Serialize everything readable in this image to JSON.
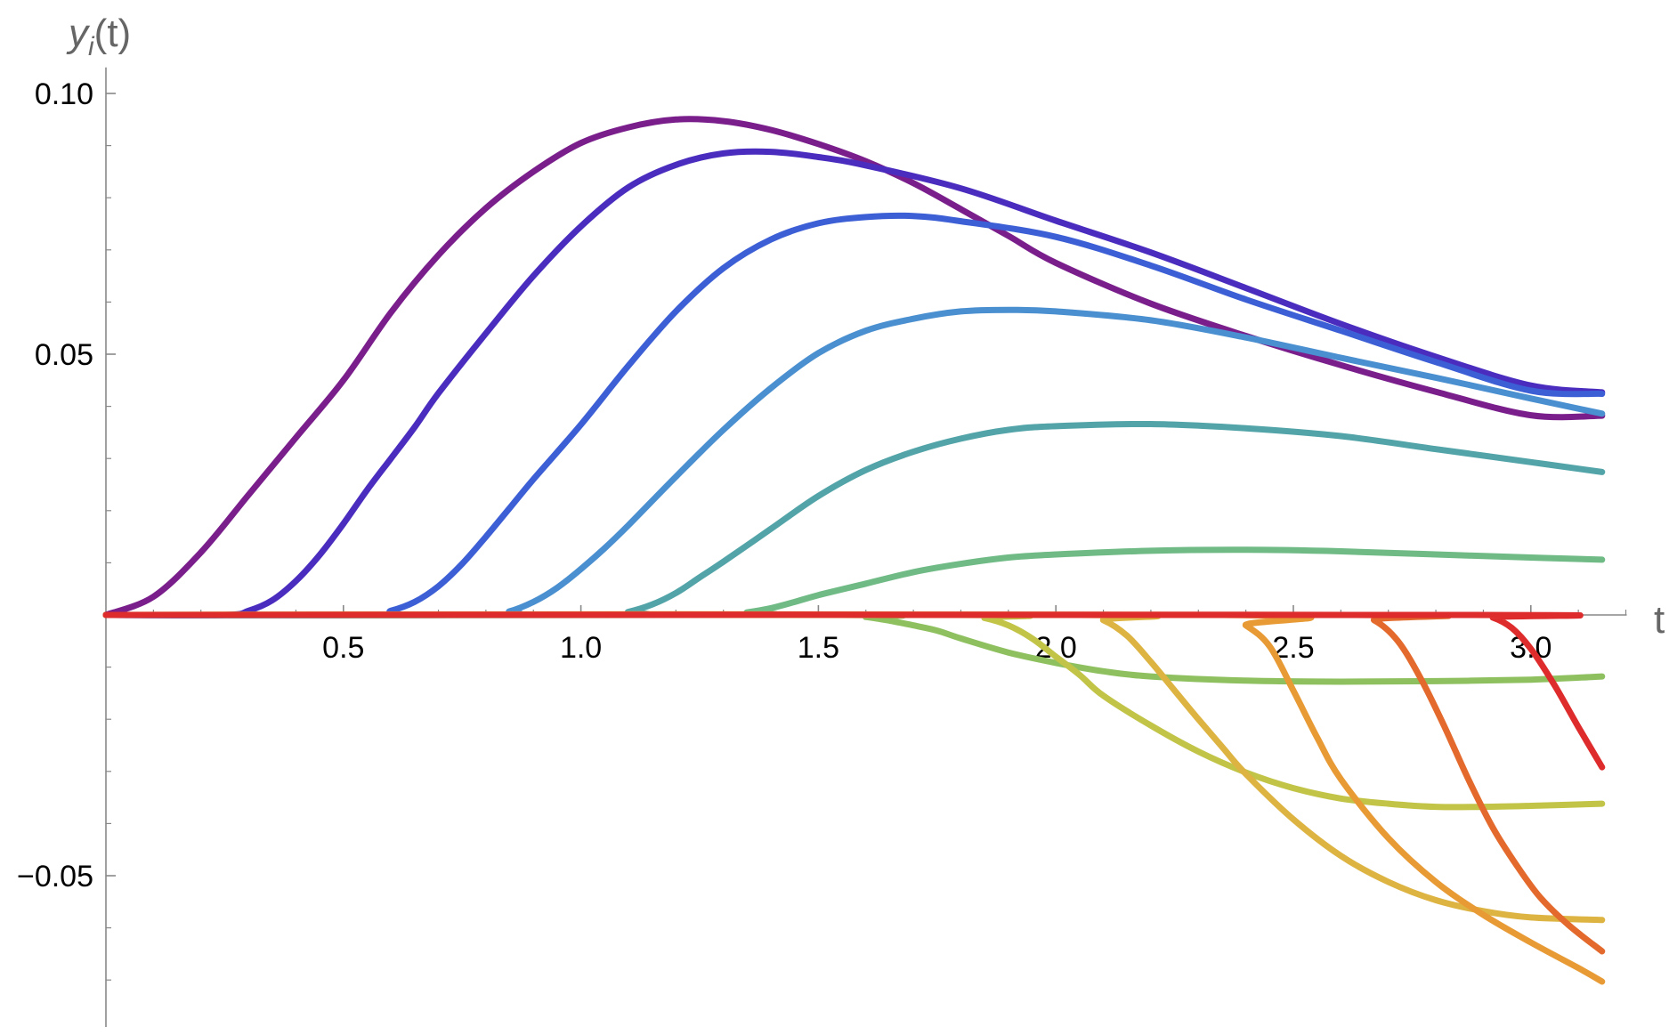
{
  "chart_data": {
    "type": "line",
    "title": "",
    "xlabel": "t",
    "ylabel_parts": {
      "base": "y",
      "sub": "i",
      "rest": "(t)"
    },
    "xlim": [
      0,
      3.2
    ],
    "ylim": [
      -0.079,
      0.105
    ],
    "xticks_major": [
      0.5,
      1.0,
      1.5,
      2.0,
      2.5,
      3.0
    ],
    "xtick_labels": [
      "0.5",
      "1.0",
      "1.5",
      "2.0",
      "2.5",
      "3.0"
    ],
    "yticks_major": [
      -0.05,
      0.05,
      0.1
    ],
    "ytick_labels": [
      "−0.05",
      "0.05",
      "0.10"
    ],
    "xticks_minor": [
      0.1,
      0.2,
      0.3,
      0.4,
      0.6,
      0.7,
      0.8,
      0.9,
      1.1,
      1.2,
      1.3,
      1.4,
      1.6,
      1.7,
      1.8,
      1.9,
      2.1,
      2.2,
      2.3,
      2.4,
      2.6,
      2.7,
      2.8,
      2.9,
      3.1,
      3.2
    ],
    "yticks_minor": [
      -0.07,
      -0.06,
      -0.04,
      -0.03,
      -0.02,
      -0.01,
      0.01,
      0.02,
      0.03,
      0.04,
      0.06,
      0.07,
      0.08,
      0.09
    ],
    "grid": false,
    "legend": "none",
    "series": [
      {
        "color": "#7a1e8c",
        "points": [
          [
            0,
            0
          ],
          [
            0.1,
            0.0035
          ],
          [
            0.2,
            0.012
          ],
          [
            0.3,
            0.023
          ],
          [
            0.4,
            0.034
          ],
          [
            0.5,
            0.045
          ],
          [
            0.6,
            0.058
          ],
          [
            0.7,
            0.069
          ],
          [
            0.8,
            0.078
          ],
          [
            0.9,
            0.085
          ],
          [
            1.0,
            0.0905
          ],
          [
            1.1,
            0.0935
          ],
          [
            1.2,
            0.095
          ],
          [
            1.3,
            0.0947
          ],
          [
            1.4,
            0.093
          ],
          [
            1.5,
            0.0903
          ],
          [
            1.6,
            0.087
          ],
          [
            1.7,
            0.0828
          ],
          [
            1.8,
            0.0778
          ],
          [
            1.9,
            0.0727
          ],
          [
            2.0,
            0.0675
          ],
          [
            2.2,
            0.0597
          ],
          [
            2.4,
            0.0535
          ],
          [
            2.6,
            0.0479
          ],
          [
            2.8,
            0.0428
          ],
          [
            3.0,
            0.0383
          ],
          [
            3.15,
            0.0382
          ]
        ]
      },
      {
        "color": "#4a2dbf",
        "points": [
          [
            0,
            0
          ],
          [
            0.25,
            0
          ],
          [
            0.3,
            0.0008
          ],
          [
            0.35,
            0.0028
          ],
          [
            0.4,
            0.0065
          ],
          [
            0.45,
            0.0115
          ],
          [
            0.5,
            0.0175
          ],
          [
            0.55,
            0.024
          ],
          [
            0.6,
            0.03
          ],
          [
            0.65,
            0.036
          ],
          [
            0.7,
            0.0425
          ],
          [
            0.8,
            0.054
          ],
          [
            0.9,
            0.065
          ],
          [
            1.0,
            0.0745
          ],
          [
            1.1,
            0.082
          ],
          [
            1.2,
            0.0863
          ],
          [
            1.3,
            0.0885
          ],
          [
            1.4,
            0.0888
          ],
          [
            1.5,
            0.0878
          ],
          [
            1.6,
            0.0862
          ],
          [
            1.8,
            0.0818
          ],
          [
            2.0,
            0.0756
          ],
          [
            2.2,
            0.0695
          ],
          [
            2.4,
            0.0627
          ],
          [
            2.6,
            0.0558
          ],
          [
            2.8,
            0.0495
          ],
          [
            3.0,
            0.044
          ],
          [
            3.15,
            0.0427
          ]
        ]
      },
      {
        "color": "#3d5fd6",
        "points": [
          [
            0,
            0
          ],
          [
            0.55,
            0
          ],
          [
            0.6,
            0.0008
          ],
          [
            0.65,
            0.0025
          ],
          [
            0.7,
            0.0055
          ],
          [
            0.75,
            0.0098
          ],
          [
            0.8,
            0.015
          ],
          [
            0.85,
            0.0205
          ],
          [
            0.9,
            0.026
          ],
          [
            1.0,
            0.0365
          ],
          [
            1.1,
            0.0478
          ],
          [
            1.2,
            0.0582
          ],
          [
            1.3,
            0.0665
          ],
          [
            1.4,
            0.072
          ],
          [
            1.5,
            0.0751
          ],
          [
            1.6,
            0.0763
          ],
          [
            1.7,
            0.0765
          ],
          [
            1.8,
            0.0755
          ],
          [
            2.0,
            0.0725
          ],
          [
            2.2,
            0.067
          ],
          [
            2.4,
            0.0605
          ],
          [
            2.6,
            0.0545
          ],
          [
            2.8,
            0.0485
          ],
          [
            3.0,
            0.043
          ],
          [
            3.15,
            0.0424
          ]
        ]
      },
      {
        "color": "#4a8fd0",
        "points": [
          [
            0,
            0
          ],
          [
            0.8,
            0
          ],
          [
            0.85,
            0.0007
          ],
          [
            0.9,
            0.0025
          ],
          [
            0.95,
            0.0052
          ],
          [
            1.0,
            0.0088
          ],
          [
            1.05,
            0.0128
          ],
          [
            1.1,
            0.0172
          ],
          [
            1.2,
            0.0265
          ],
          [
            1.3,
            0.0355
          ],
          [
            1.4,
            0.0435
          ],
          [
            1.5,
            0.0502
          ],
          [
            1.6,
            0.0545
          ],
          [
            1.7,
            0.0568
          ],
          [
            1.8,
            0.0582
          ],
          [
            1.9,
            0.0585
          ],
          [
            2.0,
            0.0582
          ],
          [
            2.2,
            0.0565
          ],
          [
            2.4,
            0.0532
          ],
          [
            2.6,
            0.0493
          ],
          [
            2.8,
            0.0455
          ],
          [
            3.0,
            0.0415
          ],
          [
            3.15,
            0.0386
          ]
        ]
      },
      {
        "color": "#52a4a8",
        "points": [
          [
            0,
            0
          ],
          [
            1.05,
            0
          ],
          [
            1.1,
            0.0006
          ],
          [
            1.15,
            0.002
          ],
          [
            1.2,
            0.0042
          ],
          [
            1.25,
            0.0072
          ],
          [
            1.3,
            0.0102
          ],
          [
            1.4,
            0.0165
          ],
          [
            1.5,
            0.0228
          ],
          [
            1.6,
            0.0278
          ],
          [
            1.7,
            0.0313
          ],
          [
            1.8,
            0.0338
          ],
          [
            1.9,
            0.0355
          ],
          [
            2.0,
            0.0362
          ],
          [
            2.2,
            0.0366
          ],
          [
            2.4,
            0.0358
          ],
          [
            2.6,
            0.0343
          ],
          [
            2.8,
            0.0318
          ],
          [
            3.0,
            0.0293
          ],
          [
            3.15,
            0.0274
          ]
        ]
      },
      {
        "color": "#6fba85",
        "points": [
          [
            0,
            0
          ],
          [
            1.3,
            0
          ],
          [
            1.35,
            0.0005
          ],
          [
            1.4,
            0.0013
          ],
          [
            1.45,
            0.0025
          ],
          [
            1.5,
            0.0038
          ],
          [
            1.6,
            0.006
          ],
          [
            1.7,
            0.0082
          ],
          [
            1.8,
            0.0098
          ],
          [
            1.9,
            0.011
          ],
          [
            2.0,
            0.0116
          ],
          [
            2.2,
            0.0123
          ],
          [
            2.4,
            0.0125
          ],
          [
            2.6,
            0.0122
          ],
          [
            2.8,
            0.0116
          ],
          [
            3.0,
            0.011
          ],
          [
            3.15,
            0.0106
          ]
        ]
      },
      {
        "color": "#8fc060",
        "points": [
          [
            0,
            0
          ],
          [
            1.55,
            0
          ],
          [
            1.6,
            -0.0004
          ],
          [
            1.65,
            -0.0011
          ],
          [
            1.7,
            -0.002
          ],
          [
            1.75,
            -0.003
          ],
          [
            1.8,
            -0.0045
          ],
          [
            1.9,
            -0.0072
          ],
          [
            2.0,
            -0.0092
          ],
          [
            2.1,
            -0.0108
          ],
          [
            2.2,
            -0.0118
          ],
          [
            2.4,
            -0.0126
          ],
          [
            2.6,
            -0.0128
          ],
          [
            2.8,
            -0.0127
          ],
          [
            3.0,
            -0.0124
          ],
          [
            3.15,
            -0.0118
          ]
        ]
      },
      {
        "color": "#c2c448",
        "points": [
          [
            0,
            0
          ],
          [
            1.8,
            0
          ],
          [
            1.85,
            -0.0006
          ],
          [
            1.9,
            -0.002
          ],
          [
            1.95,
            -0.0045
          ],
          [
            2.0,
            -0.008
          ],
          [
            2.05,
            -0.0115
          ],
          [
            2.1,
            -0.0155
          ],
          [
            2.2,
            -0.0212
          ],
          [
            2.3,
            -0.0262
          ],
          [
            2.4,
            -0.0302
          ],
          [
            2.5,
            -0.0332
          ],
          [
            2.6,
            -0.0352
          ],
          [
            2.7,
            -0.0362
          ],
          [
            2.8,
            -0.0368
          ],
          [
            2.9,
            -0.0368
          ],
          [
            3.0,
            -0.0366
          ],
          [
            3.15,
            -0.0362
          ]
        ]
      },
      {
        "color": "#ddb341",
        "points": [
          [
            0,
            0
          ],
          [
            2.05,
            0
          ],
          [
            2.1,
            -0.001
          ],
          [
            2.15,
            -0.004
          ],
          [
            2.2,
            -0.009
          ],
          [
            2.25,
            -0.0145
          ],
          [
            2.3,
            -0.02
          ],
          [
            2.35,
            -0.0253
          ],
          [
            2.4,
            -0.0305
          ],
          [
            2.5,
            -0.0392
          ],
          [
            2.6,
            -0.0462
          ],
          [
            2.7,
            -0.0512
          ],
          [
            2.8,
            -0.0547
          ],
          [
            2.9,
            -0.0568
          ],
          [
            3.0,
            -0.058
          ],
          [
            3.15,
            -0.0585
          ]
        ]
      },
      {
        "color": "#e89a35",
        "points": [
          [
            0,
            0
          ],
          [
            2.35,
            0
          ],
          [
            2.4,
            -0.002
          ],
          [
            2.45,
            -0.006
          ],
          [
            2.5,
            -0.0145
          ],
          [
            2.55,
            -0.0235
          ],
          [
            2.6,
            -0.0315
          ],
          [
            2.7,
            -0.0428
          ],
          [
            2.8,
            -0.0512
          ],
          [
            2.9,
            -0.0575
          ],
          [
            3.0,
            -0.0628
          ],
          [
            3.1,
            -0.0677
          ],
          [
            3.15,
            -0.0703
          ]
        ]
      },
      {
        "color": "#e36a2c",
        "points": [
          [
            0,
            0
          ],
          [
            2.62,
            0
          ],
          [
            2.67,
            -0.001
          ],
          [
            2.72,
            -0.005
          ],
          [
            2.77,
            -0.0125
          ],
          [
            2.82,
            -0.0218
          ],
          [
            2.87,
            -0.0318
          ],
          [
            2.92,
            -0.0408
          ],
          [
            2.97,
            -0.048
          ],
          [
            3.02,
            -0.0542
          ],
          [
            3.08,
            -0.0595
          ],
          [
            3.15,
            -0.0645
          ]
        ]
      },
      {
        "color": "#de2b2b",
        "points": [
          [
            0,
            0
          ],
          [
            2.88,
            0
          ],
          [
            2.92,
            -0.0005
          ],
          [
            2.96,
            -0.0025
          ],
          [
            3.0,
            -0.0065
          ],
          [
            3.05,
            -0.0135
          ],
          [
            3.1,
            -0.0215
          ],
          [
            3.15,
            -0.0292
          ]
        ]
      }
    ]
  }
}
